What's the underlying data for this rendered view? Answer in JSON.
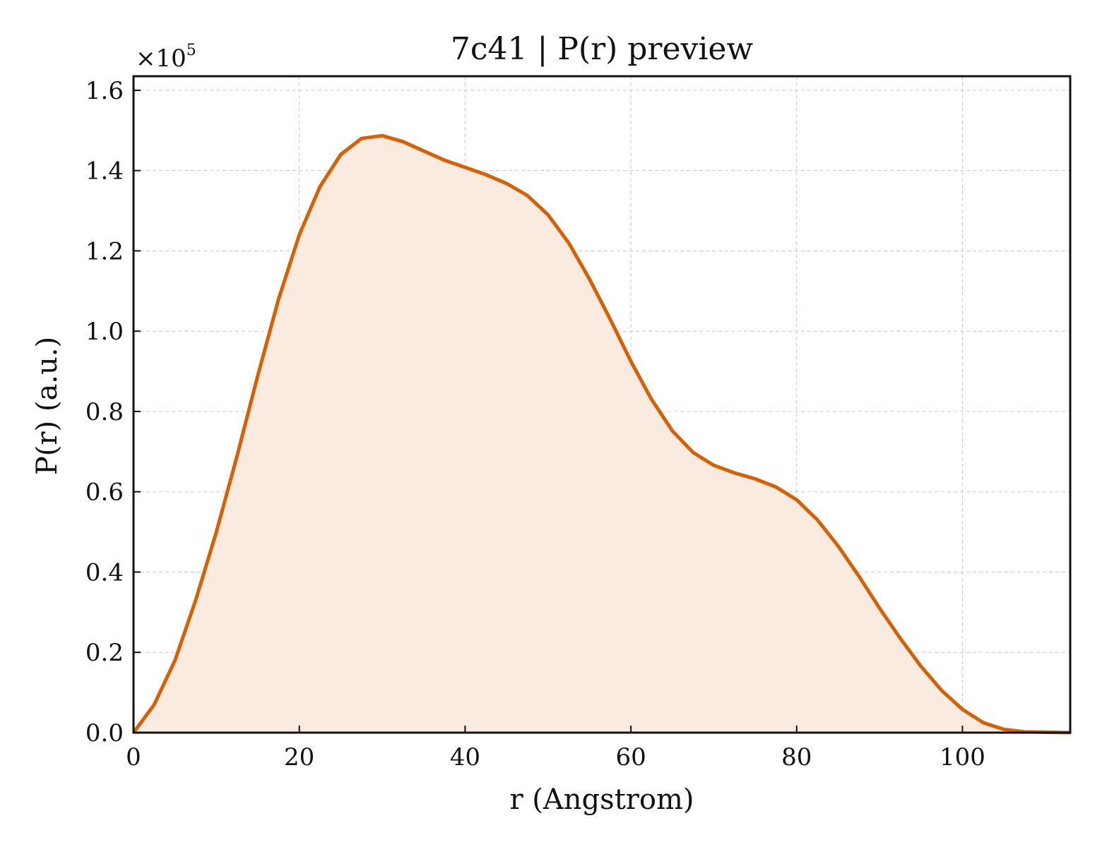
{
  "chart_data": {
    "type": "area",
    "title": "7c41 | P(r) preview",
    "xlabel": "r (Angstrom)",
    "ylabel": "P(r) (a.u.)",
    "y_multiplier": {
      "base": "×10",
      "exponent": "5"
    },
    "xlim": [
      0,
      113
    ],
    "ylim": [
      0,
      1.635
    ],
    "x_ticks": [
      0,
      20,
      40,
      60,
      80,
      100
    ],
    "x_tick_labels": [
      "0",
      "20",
      "40",
      "60",
      "80",
      "100"
    ],
    "y_ticks": [
      0,
      0.2,
      0.4,
      0.6,
      0.8,
      1.0,
      1.2,
      1.4,
      1.6
    ],
    "y_tick_labels": [
      "0.0",
      "0.2",
      "0.4",
      "0.6",
      "0.8",
      "1.0",
      "1.2",
      "1.4",
      "1.6"
    ],
    "grid": true,
    "line_color": "#d95f02",
    "fill_color": "#f9ebe0",
    "series": [
      {
        "x": [
          0,
          2.5,
          5.0,
          7.5,
          10.0,
          12.5,
          15.0,
          17.5,
          20.0,
          22.5,
          25.0,
          27.5,
          30.0,
          32.5,
          35.0,
          37.5,
          40.0,
          42.5,
          45.0,
          47.5,
          50.0,
          52.5,
          55.0,
          57.5,
          60.0,
          62.5,
          65.0,
          67.5,
          70.0,
          72.5,
          75.0,
          77.5,
          80.0,
          82.5,
          85.0,
          87.5,
          90.0,
          92.5,
          95.0,
          97.5,
          100.0,
          102.5,
          105.0,
          107.5,
          110.0,
          113.0
        ],
        "y": [
          0.0,
          0.07,
          0.18,
          0.33,
          0.5,
          0.69,
          0.89,
          1.08,
          1.24,
          1.36,
          1.44,
          1.48,
          1.487,
          1.472,
          1.449,
          1.426,
          1.408,
          1.39,
          1.368,
          1.338,
          1.29,
          1.22,
          1.13,
          1.03,
          0.925,
          0.83,
          0.752,
          0.698,
          0.666,
          0.647,
          0.632,
          0.612,
          0.58,
          0.53,
          0.465,
          0.39,
          0.31,
          0.235,
          0.165,
          0.105,
          0.058,
          0.025,
          0.008,
          0.002,
          0.001,
          0.0
        ]
      }
    ]
  }
}
